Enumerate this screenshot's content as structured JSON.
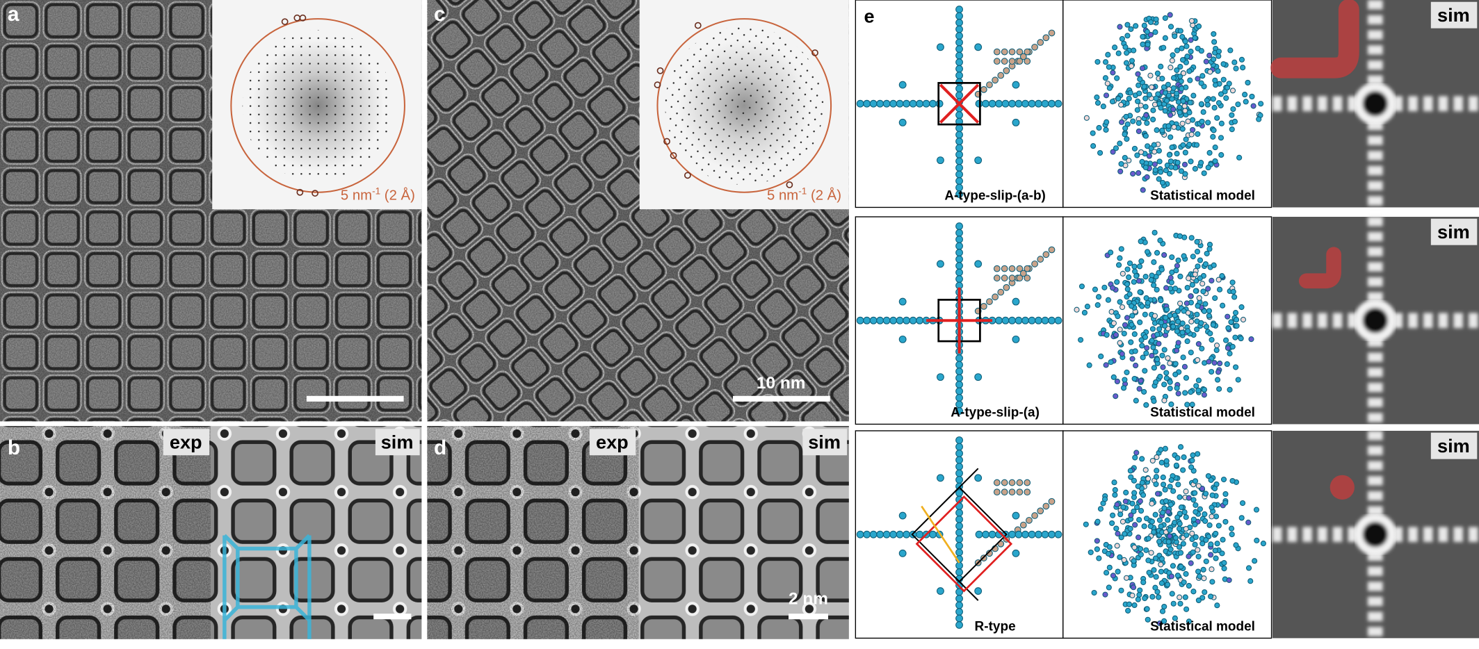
{
  "panels": {
    "a": {
      "label": "a",
      "fft_scale": {
        "text": "5 nm",
        "superscript": "-1",
        "suffix": " (2 Å)"
      }
    },
    "b": {
      "label": "b",
      "exp": "exp",
      "sim": "sim"
    },
    "c": {
      "label": "c",
      "fft_scale": {
        "text": "5 nm",
        "superscript": "-1",
        "suffix": " (2 Å)"
      },
      "scale_bar": "10 nm"
    },
    "d": {
      "label": "d",
      "exp": "exp",
      "sim": "sim",
      "scale_bar": "2 nm"
    },
    "e": {
      "label": "e",
      "rows": [
        {
          "model": "A-type-slip-(a-b)",
          "statistical": "Statistical model",
          "sim": "sim"
        },
        {
          "model": "A-type-slip-(a)",
          "statistical": "Statistical model",
          "sim": "sim"
        },
        {
          "model": "R-type",
          "statistical": "Statistical model",
          "sim": "sim"
        }
      ]
    }
  }
}
